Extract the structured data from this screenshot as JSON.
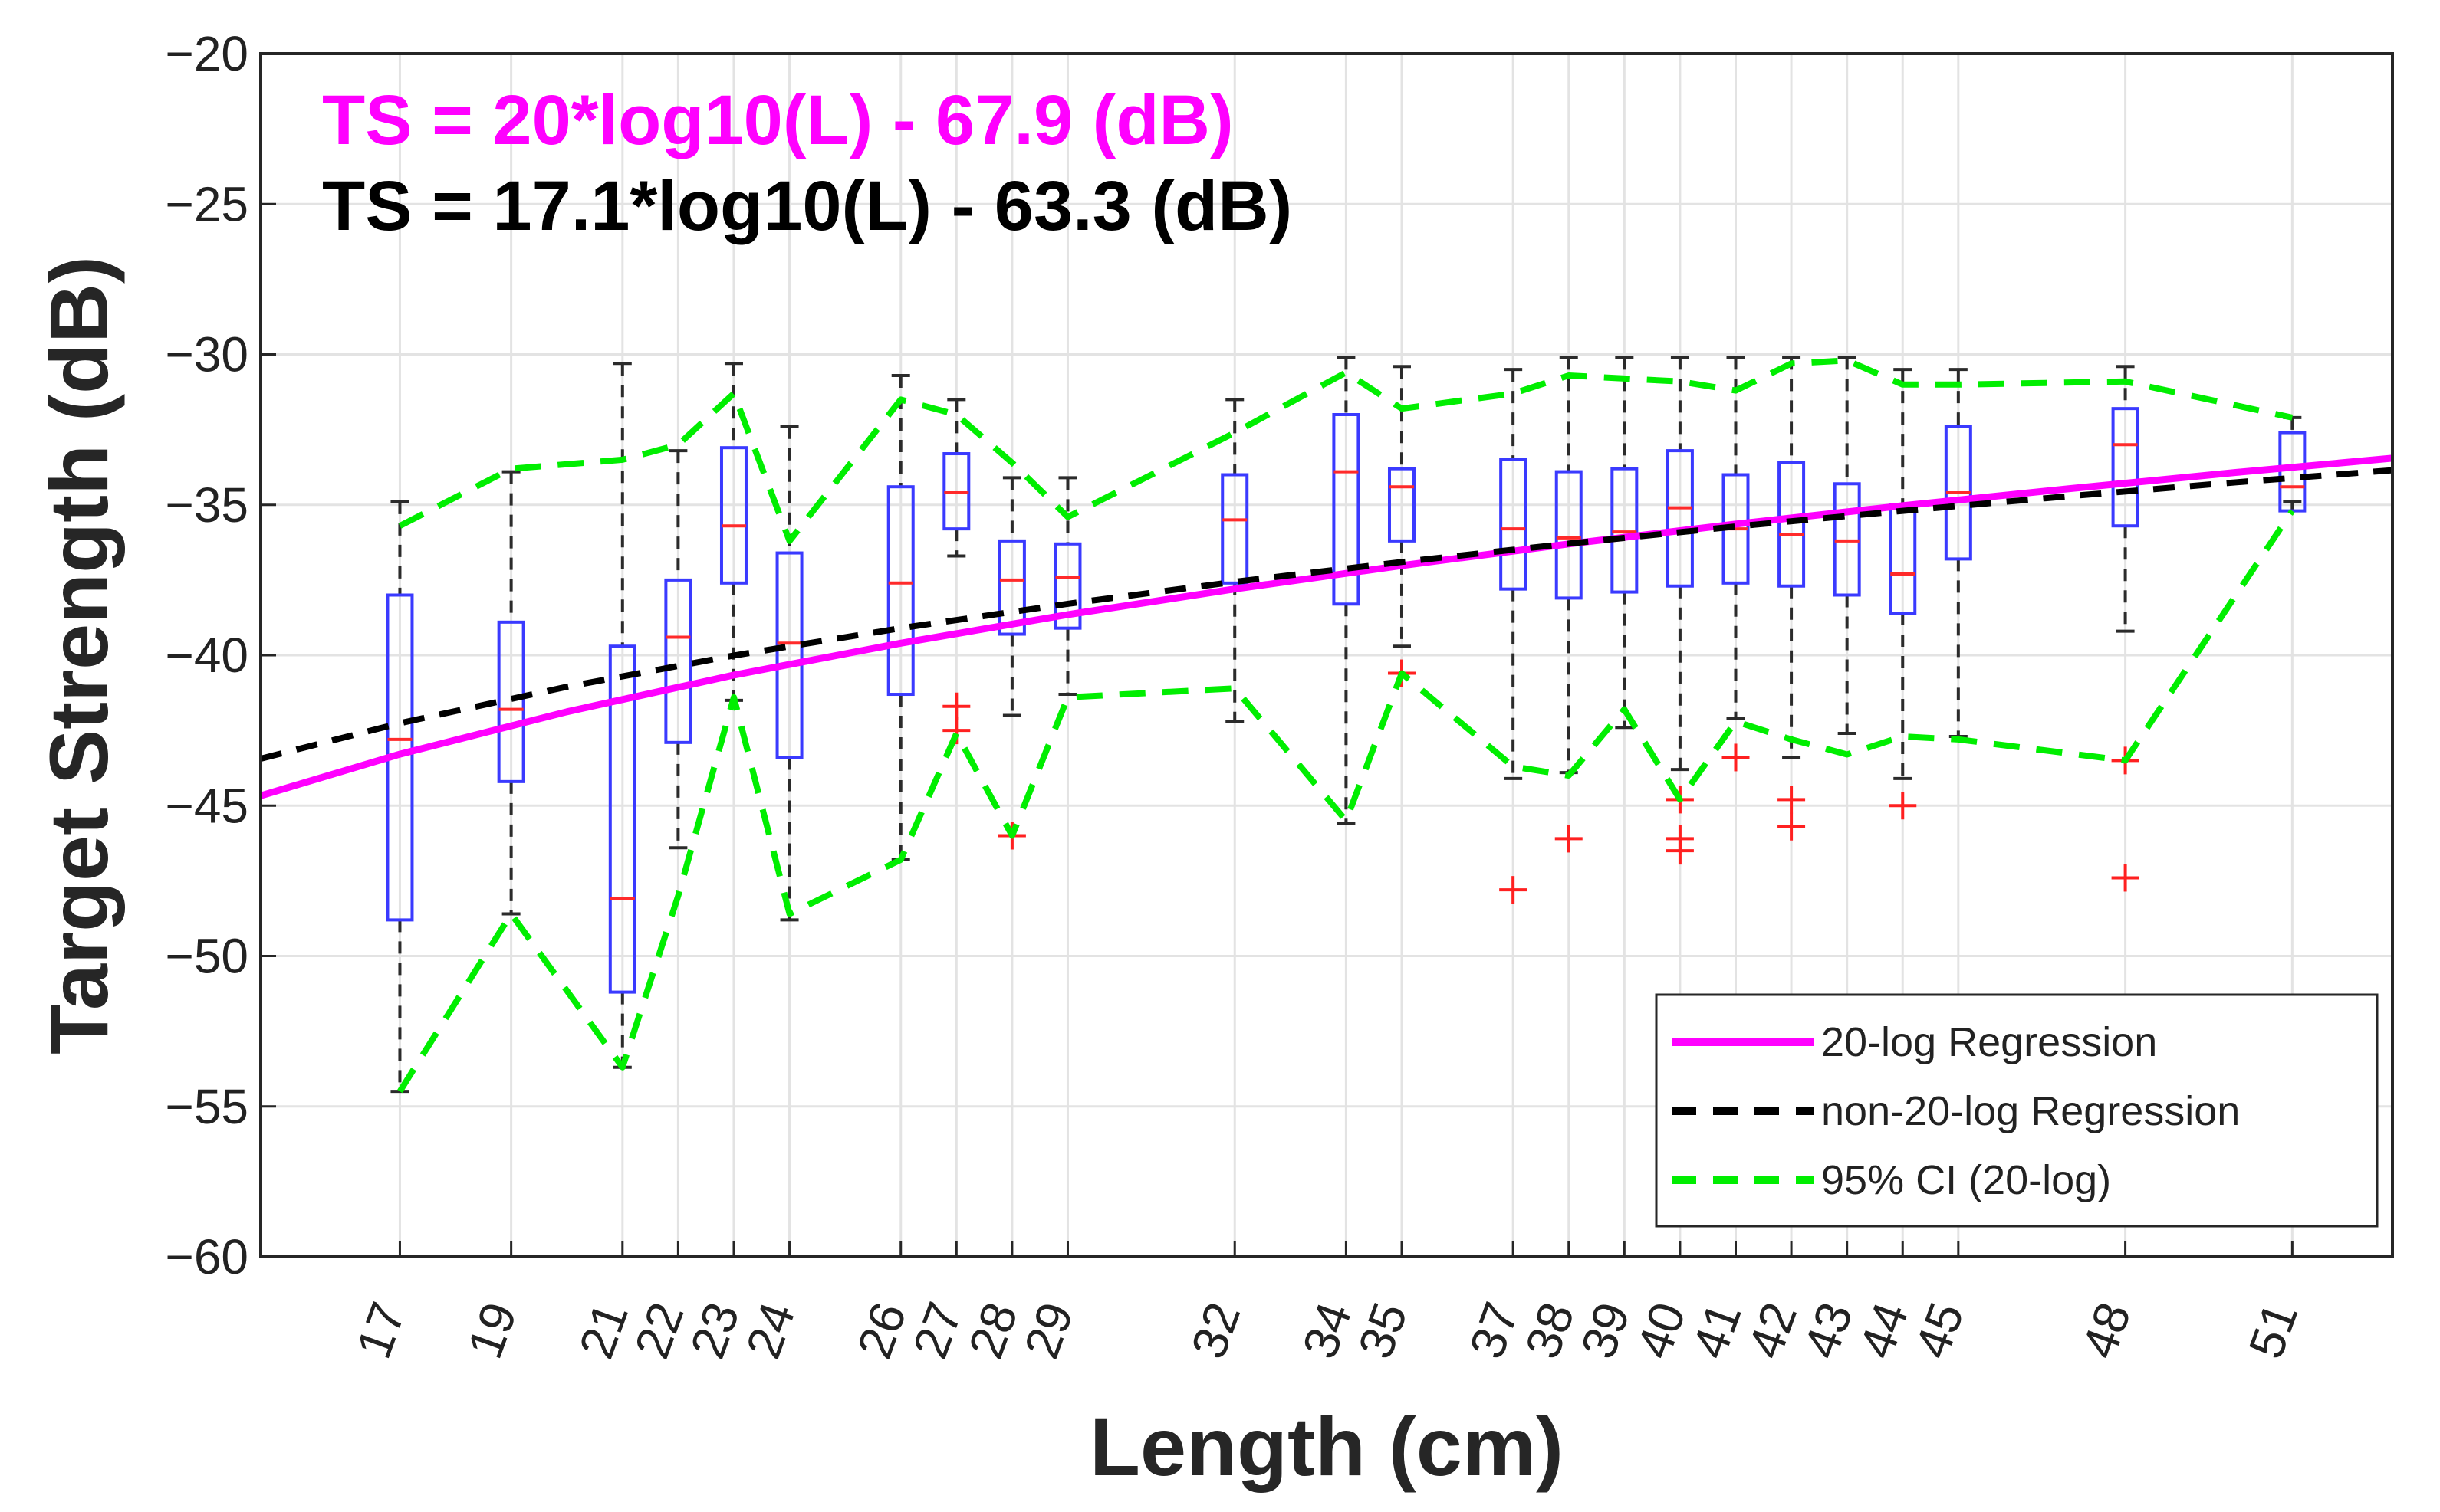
{
  "chart_data": {
    "type": "box",
    "xlabel": "Length (cm)",
    "ylabel": "Target Strength (dB)",
    "ylim": [
      -60,
      -20
    ],
    "yticks": [
      -60,
      -55,
      -50,
      -45,
      -40,
      -35,
      -30,
      -25,
      -20
    ],
    "xlim": [
      14.5,
      52.8
    ],
    "grid": true,
    "annotations": [
      {
        "text": "TS = 20*log10(L) - 67.9 (dB)",
        "color": "#ff00ff"
      },
      {
        "text": "TS = 17.1*log10(L) - 63.3 (dB)",
        "color": "#000000"
      }
    ],
    "boxes": [
      {
        "x": 17,
        "label": "17",
        "wl": -54.5,
        "q1": -48.8,
        "med": -42.8,
        "q3": -38.0,
        "wh": -34.9,
        "outliers": []
      },
      {
        "x": 19,
        "label": "19",
        "wl": -48.6,
        "q1": -44.2,
        "med": -41.8,
        "q3": -38.9,
        "wh": -33.9,
        "outliers": []
      },
      {
        "x": 21,
        "label": "21",
        "wl": -53.7,
        "q1": -51.2,
        "med": -48.1,
        "q3": -39.7,
        "wh": -30.3,
        "outliers": []
      },
      {
        "x": 22,
        "label": "22",
        "wl": -46.4,
        "q1": -42.9,
        "med": -39.4,
        "q3": -37.5,
        "wh": -33.2,
        "outliers": []
      },
      {
        "x": 23,
        "label": "23",
        "wl": -41.5,
        "q1": -37.6,
        "med": -35.7,
        "q3": -33.1,
        "wh": -30.3,
        "outliers": []
      },
      {
        "x": 24,
        "label": "24",
        "wl": -48.8,
        "q1": -43.4,
        "med": -39.6,
        "q3": -36.6,
        "wh": -32.4,
        "outliers": []
      },
      {
        "x": 26,
        "label": "26",
        "wl": -46.8,
        "q1": -41.3,
        "med": -37.6,
        "q3": -34.4,
        "wh": -30.7,
        "outliers": []
      },
      {
        "x": 27,
        "label": "27",
        "wl": -36.7,
        "q1": -35.8,
        "med": -34.6,
        "q3": -33.3,
        "wh": -31.5,
        "outliers": [
          -41.7,
          -42.5
        ]
      },
      {
        "x": 28,
        "label": "28",
        "wl": -42.0,
        "q1": -39.3,
        "med": -37.5,
        "q3": -36.2,
        "wh": -34.1,
        "outliers": [
          -46.0
        ]
      },
      {
        "x": 29,
        "label": "29",
        "wl": -41.3,
        "q1": -39.1,
        "med": -37.4,
        "q3": -36.3,
        "wh": -34.1,
        "outliers": []
      },
      {
        "x": 32,
        "label": "32",
        "wl": -42.2,
        "q1": -37.6,
        "med": -35.5,
        "q3": -34.0,
        "wh": -31.5,
        "outliers": []
      },
      {
        "x": 34,
        "label": "34",
        "wl": -45.6,
        "q1": -38.3,
        "med": -33.9,
        "q3": -32.0,
        "wh": -30.1,
        "outliers": []
      },
      {
        "x": 35,
        "label": "35",
        "wl": -39.7,
        "q1": -36.2,
        "med": -34.4,
        "q3": -33.8,
        "wh": -30.4,
        "outliers": [
          -40.6
        ]
      },
      {
        "x": 37,
        "label": "37",
        "wl": -44.1,
        "q1": -37.8,
        "med": -35.8,
        "q3": -33.5,
        "wh": -30.5,
        "outliers": [
          -47.8
        ]
      },
      {
        "x": 38,
        "label": "38",
        "wl": -43.9,
        "q1": -38.1,
        "med": -36.1,
        "q3": -33.9,
        "wh": -30.1,
        "outliers": [
          -46.1
        ]
      },
      {
        "x": 39,
        "label": "39",
        "wl": -42.4,
        "q1": -37.9,
        "med": -35.9,
        "q3": -33.8,
        "wh": -30.1,
        "outliers": []
      },
      {
        "x": 40,
        "label": "40",
        "wl": -43.8,
        "q1": -37.7,
        "med": -35.1,
        "q3": -33.2,
        "wh": -30.1,
        "outliers": [
          -44.8,
          -46.1,
          -46.5
        ]
      },
      {
        "x": 41,
        "label": "41",
        "wl": -42.1,
        "q1": -37.6,
        "med": -35.8,
        "q3": -34.0,
        "wh": -30.1,
        "outliers": [
          -43.4
        ]
      },
      {
        "x": 42,
        "label": "42",
        "wl": -43.4,
        "q1": -37.7,
        "med": -36.0,
        "q3": -33.6,
        "wh": -30.1,
        "outliers": [
          -44.8,
          -45.7
        ]
      },
      {
        "x": 43,
        "label": "43",
        "wl": -42.6,
        "q1": -38.0,
        "med": -36.2,
        "q3": -34.3,
        "wh": -30.1,
        "outliers": []
      },
      {
        "x": 44,
        "label": "44",
        "wl": -44.1,
        "q1": -38.6,
        "med": -37.3,
        "q3": -35.0,
        "wh": -30.5,
        "outliers": [
          -45.0
        ]
      },
      {
        "x": 45,
        "label": "45",
        "wl": -42.7,
        "q1": -36.8,
        "med": -34.6,
        "q3": -32.4,
        "wh": -30.5,
        "outliers": []
      },
      {
        "x": 48,
        "label": "48",
        "wl": -39.2,
        "q1": -35.7,
        "med": -33.0,
        "q3": -31.8,
        "wh": -30.4,
        "outliers": [
          -43.5,
          -47.4
        ]
      },
      {
        "x": 51,
        "label": "51",
        "wl": -34.9,
        "q1": -35.2,
        "med": -34.4,
        "q3": -32.6,
        "wh": -32.1,
        "outliers": []
      }
    ],
    "series": [
      {
        "name": "20-log Regression",
        "color": "#ff00ff",
        "style": "solid",
        "x": [
          14.5,
          17,
          20,
          23,
          26,
          29,
          32,
          35,
          38,
          41,
          44,
          47,
          50,
          52.8
        ],
        "y": [
          -44.67,
          -43.29,
          -41.88,
          -40.66,
          -39.6,
          -38.65,
          -37.8,
          -37.02,
          -36.3,
          -35.64,
          -35.03,
          -34.46,
          -33.92,
          -33.45
        ]
      },
      {
        "name": "non-20-log Regression",
        "color": "#000000",
        "style": "dashed",
        "x": [
          14.5,
          17,
          20,
          23,
          26,
          29,
          32,
          35,
          38,
          41,
          44,
          47,
          50,
          52.8
        ],
        "y": [
          -43.44,
          -42.26,
          -41.05,
          -40.01,
          -39.1,
          -38.29,
          -37.56,
          -36.9,
          -36.29,
          -35.72,
          -35.2,
          -34.71,
          -34.25,
          -33.85
        ]
      },
      {
        "name": "95% CI (20-log)",
        "color": "#00ee00",
        "style": "dashed",
        "x": [
          17,
          19,
          21,
          22,
          23,
          24,
          26,
          27,
          28,
          29,
          32,
          34,
          35,
          37,
          38,
          39,
          40,
          41,
          42,
          43,
          44,
          45,
          48,
          51
        ],
        "y": [
          -35.7,
          -33.8,
          -33.5,
          -33.0,
          -31.3,
          -36.2,
          -31.5,
          -32.0,
          -33.6,
          -35.4,
          -32.6,
          -30.6,
          -31.8,
          -31.3,
          -30.7,
          -30.8,
          -30.9,
          -31.2,
          -30.3,
          -30.2,
          -31.0,
          -31.0,
          -30.9,
          -32.1
        ]
      },
      {
        "name": "95% CI (20-log) lower",
        "color": "#00ee00",
        "style": "dashed",
        "legend": false,
        "x": [
          17,
          19,
          21,
          22,
          23,
          24,
          26,
          27,
          28,
          29,
          32,
          34,
          35,
          37,
          38,
          39,
          40,
          41,
          42,
          43,
          44,
          45,
          48,
          51
        ],
        "y": [
          -54.5,
          -48.6,
          -53.7,
          -48.0,
          -41.4,
          -48.6,
          -46.8,
          -42.6,
          -46.0,
          -41.4,
          -41.1,
          -45.5,
          -40.6,
          -43.7,
          -44.0,
          -41.8,
          -44.8,
          -42.2,
          -42.8,
          -43.3,
          -42.7,
          -42.8,
          -43.5,
          -35.2
        ]
      }
    ],
    "legend": {
      "position": "bottom-right",
      "entries": [
        "20-log Regression",
        "non-20-log Regression",
        "95% CI (20-log)"
      ]
    }
  }
}
